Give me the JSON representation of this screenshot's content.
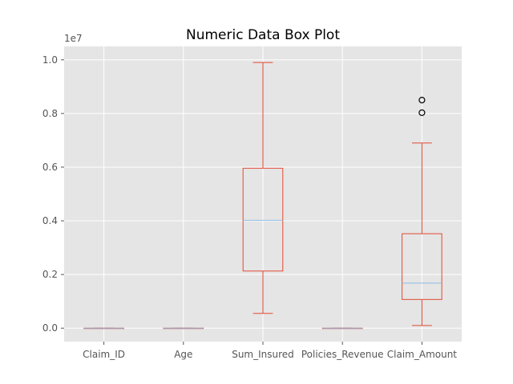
{
  "chart_data": {
    "type": "box",
    "title": "Numeric Data Box Plot",
    "xlabel": "",
    "ylabel": "",
    "y_offset_label": "1e7",
    "ylim": [
      -0.05,
      1.05
    ],
    "y_ticks": [
      0.0,
      0.2,
      0.4,
      0.6,
      0.8,
      1.0
    ],
    "y_tick_labels": [
      "0.0",
      "0.2",
      "0.4",
      "0.6",
      "0.8",
      "1.0"
    ],
    "grid": true,
    "colors": {
      "background": "#E5E5E5",
      "grid": "#FFFFFF",
      "box": "#E24A33",
      "median": "#8EBAE5",
      "flier": "#000000"
    },
    "boxes": [
      {
        "label": "Claim_ID",
        "whisker_low": 0.0,
        "q1": 0.0,
        "median": 0.0,
        "q3": 0.0,
        "whisker_high": 0.0,
        "fliers": []
      },
      {
        "label": "Age",
        "whisker_low": 0.0,
        "q1": 0.0,
        "median": 0.0,
        "q3": 0.0,
        "whisker_high": 0.0,
        "fliers": []
      },
      {
        "label": "Sum_Insured",
        "whisker_low": 0.055,
        "q1": 0.213,
        "median": 0.402,
        "q3": 0.596,
        "whisker_high": 0.99,
        "fliers": []
      },
      {
        "label": "Policies_Revenue",
        "whisker_low": 0.0,
        "q1": 0.0,
        "median": 0.0,
        "q3": 0.0,
        "whisker_high": 0.0,
        "fliers": []
      },
      {
        "label": "Claim_Amount",
        "whisker_low": 0.01,
        "q1": 0.107,
        "median": 0.168,
        "q3": 0.352,
        "whisker_high": 0.69,
        "fliers": [
          0.803,
          0.85
        ]
      }
    ]
  }
}
